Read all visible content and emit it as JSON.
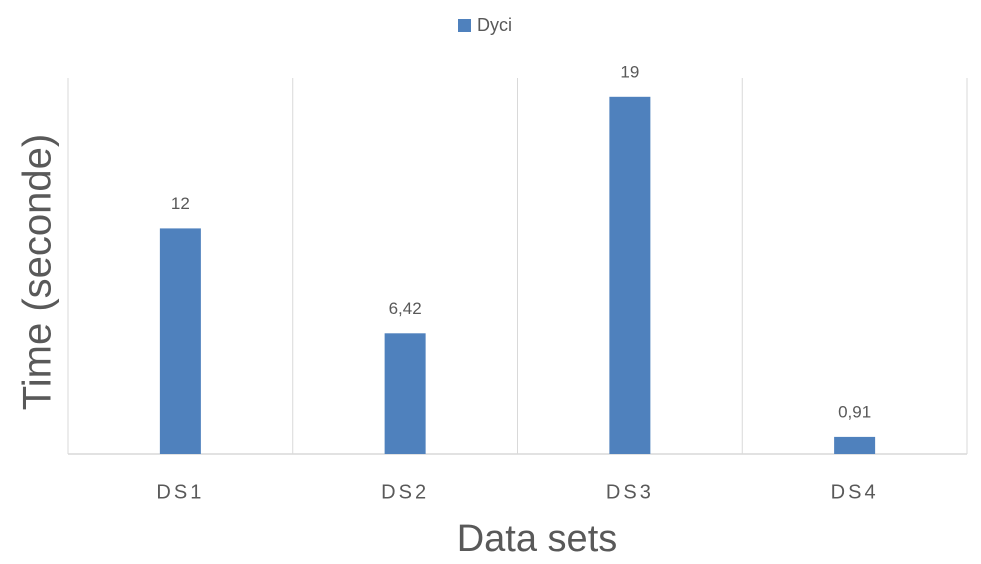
{
  "chart_data": {
    "type": "bar",
    "categories": [
      "DS1",
      "DS2",
      "DS3",
      "DS4"
    ],
    "series": [
      {
        "name": "Dyci",
        "color": "#4f81bd",
        "values": [
          12,
          6.42,
          19,
          0.91
        ],
        "value_labels": [
          "12",
          "6,42",
          "19",
          "0,91"
        ]
      }
    ],
    "x_label": "Data sets",
    "y_label": "Time (seconde)",
    "ylim": [
      0,
      20
    ],
    "legend": "top"
  }
}
